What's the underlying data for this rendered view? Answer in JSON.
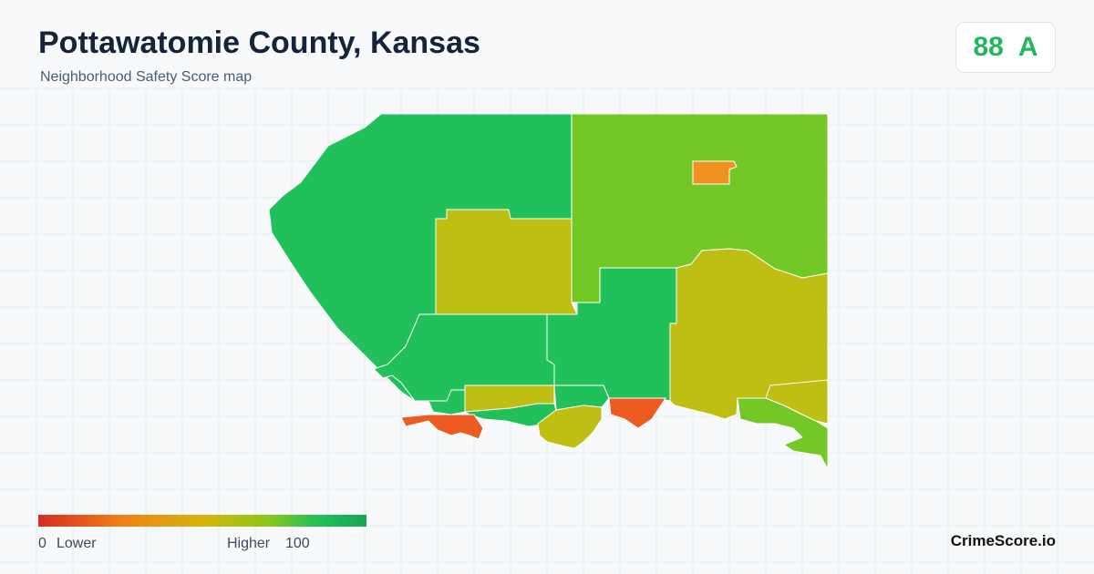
{
  "header": {
    "title": "Pottawatomie County, Kansas",
    "subtitle": "Neighborhood Safety Score map"
  },
  "score_badge": {
    "score": 88,
    "grade": "A"
  },
  "legend": {
    "min": 0,
    "low_label": "Lower",
    "high_label": "Higher",
    "max": 100
  },
  "brand": "CrimeScore.io"
}
